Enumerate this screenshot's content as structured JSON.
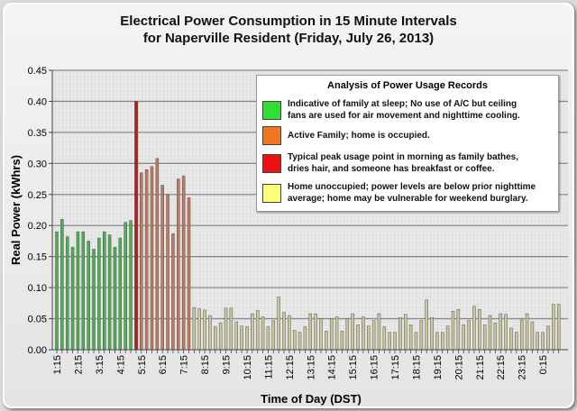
{
  "chart_data": {
    "type": "bar",
    "title_lines": [
      "Electrical Power Consumption in 15 Minute Intervals",
      "for Naperville Resident (Friday, July 26, 2013)"
    ],
    "xlabel": "Time of Day (DST)",
    "ylabel": "Real Power (kWhrs)",
    "ylim": [
      0,
      0.45
    ],
    "yticks": [
      "0.00",
      "0.05",
      "0.10",
      "0.15",
      "0.20",
      "0.25",
      "0.30",
      "0.35",
      "0.40",
      "0.45"
    ],
    "grid": true,
    "x_tick_labels": [
      "1:15",
      "2:15",
      "3:15",
      "4:15",
      "5:15",
      "6:15",
      "7:15",
      "8:15",
      "9:15",
      "10:15",
      "11:15",
      "12:15",
      "13:15",
      "14:15",
      "15:15",
      "16:15",
      "17:15",
      "18:15",
      "19:15",
      "20:15",
      "21:15",
      "22:15",
      "23:15",
      "0:15"
    ],
    "legend": {
      "title": "Analysis of Power Usage Records",
      "placement": "top-right",
      "items": [
        {
          "key": "sleep",
          "color": "#33dd33",
          "line1": "Indicative of family at sleep; No use of A/C but ceiling",
          "line2": "fans are used for air movement and nighttime cooling."
        },
        {
          "key": "active",
          "color": "#ee7722",
          "line1": "Active Family; home is occupied.",
          "line2": ""
        },
        {
          "key": "peak",
          "color": "#ee1111",
          "line1": "Typical peak usage point in morning as family bathes,",
          "line2": "dries hair, and someone has breakfast or coffee."
        },
        {
          "key": "unoccupied",
          "color": "#ffff77",
          "line1": "Home unoccupied; power levels are below prior nighttime",
          "line2": "average; home may be vulnerable for weekend burglary."
        }
      ]
    },
    "groups": [
      {
        "record": "sleep",
        "bar_color": "#4caf50",
        "times": [
          "1:15",
          "1:30",
          "1:45",
          "2:00",
          "2:15",
          "2:30",
          "2:45",
          "3:00",
          "3:15",
          "3:30",
          "3:45",
          "4:00",
          "4:15",
          "4:30",
          "4:45"
        ],
        "values": [
          0.19,
          0.21,
          0.182,
          0.165,
          0.19,
          0.19,
          0.175,
          0.162,
          0.18,
          0.19,
          0.185,
          0.165,
          0.18,
          0.205,
          0.208
        ]
      },
      {
        "record": "peak",
        "bar_color": "#b02020",
        "times": [
          "5:00"
        ],
        "values": [
          0.4
        ]
      },
      {
        "record": "active",
        "bar_color": "#c07a60",
        "times": [
          "5:15",
          "5:30",
          "5:45",
          "6:00",
          "6:15",
          "6:30",
          "6:45",
          "7:00",
          "7:15",
          "7:30"
        ],
        "values": [
          0.285,
          0.29,
          0.295,
          0.308,
          0.265,
          0.25,
          0.187,
          0.275,
          0.28,
          0.245
        ]
      },
      {
        "record": "unoccupied",
        "bar_color": "#c8c89a",
        "times": [
          "7:45",
          "8:00",
          "8:15",
          "8:30",
          "8:45",
          "9:00",
          "9:15",
          "9:30",
          "9:45",
          "10:00",
          "10:15",
          "10:30",
          "10:45",
          "11:00",
          "11:15",
          "11:30",
          "11:45",
          "12:00",
          "12:15",
          "12:30",
          "12:45",
          "13:00",
          "13:15",
          "13:30",
          "13:45",
          "14:00",
          "14:15",
          "14:30",
          "14:45",
          "15:00",
          "15:15",
          "15:30",
          "15:45",
          "16:00",
          "16:15",
          "16:30",
          "16:45",
          "17:00",
          "17:15",
          "17:30",
          "17:45",
          "18:00",
          "18:15",
          "18:30",
          "18:45",
          "19:00",
          "19:15",
          "19:30",
          "19:45",
          "20:00",
          "20:15",
          "20:30",
          "20:45",
          "21:00",
          "21:15",
          "21:30",
          "21:45",
          "22:00",
          "22:15",
          "22:30",
          "22:45",
          "23:00",
          "23:15",
          "23:30",
          "23:45",
          "0:00",
          "0:15",
          "0:30",
          "0:45",
          "1:00"
        ],
        "values": [
          0.068,
          0.066,
          0.064,
          0.055,
          0.037,
          0.043,
          0.067,
          0.067,
          0.045,
          0.038,
          0.037,
          0.058,
          0.063,
          0.053,
          0.037,
          0.047,
          0.085,
          0.06,
          0.055,
          0.031,
          0.028,
          0.037,
          0.058,
          0.058,
          0.05,
          0.03,
          0.05,
          0.053,
          0.03,
          0.05,
          0.058,
          0.04,
          0.053,
          0.038,
          0.047,
          0.058,
          0.037,
          0.028,
          0.028,
          0.052,
          0.057,
          0.04,
          0.028,
          0.047,
          0.08,
          0.052,
          0.028,
          0.028,
          0.038,
          0.062,
          0.065,
          0.04,
          0.047,
          0.07,
          0.065,
          0.04,
          0.055,
          0.043,
          0.058,
          0.057,
          0.035,
          0.028,
          0.048,
          0.058,
          0.045,
          0.028,
          0.028,
          0.038,
          0.073,
          0.073
        ]
      }
    ]
  }
}
